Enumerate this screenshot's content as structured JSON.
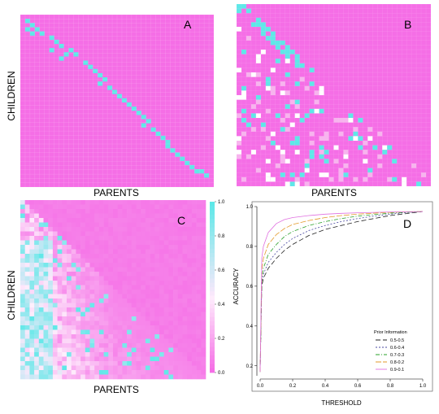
{
  "chart_data": [
    {
      "panel": "A",
      "type": "heatmap",
      "xlabel": "PARENTS",
      "ylabel": "CHILDREN",
      "grid_size": 40,
      "highlight_color": "#5ee8e8",
      "base_color": "#f56ee6",
      "highlight_cells": [
        [
          1,
          1
        ],
        [
          2,
          2
        ],
        [
          3,
          1
        ],
        [
          3,
          3
        ],
        [
          4,
          2
        ],
        [
          4,
          4
        ],
        [
          5,
          6
        ],
        [
          6,
          7
        ],
        [
          7,
          8
        ],
        [
          8,
          6
        ],
        [
          8,
          10
        ],
        [
          9,
          9
        ],
        [
          9,
          11
        ],
        [
          10,
          8
        ],
        [
          11,
          13
        ],
        [
          12,
          14
        ],
        [
          13,
          15
        ],
        [
          14,
          16
        ],
        [
          15,
          17
        ],
        [
          16,
          16
        ],
        [
          17,
          18
        ],
        [
          18,
          19
        ],
        [
          19,
          20
        ],
        [
          20,
          21
        ],
        [
          21,
          22
        ],
        [
          22,
          23
        ],
        [
          23,
          24
        ],
        [
          24,
          25
        ],
        [
          25,
          26
        ],
        [
          26,
          25
        ],
        [
          27,
          27
        ],
        [
          28,
          28
        ],
        [
          29,
          29
        ],
        [
          30,
          30
        ],
        [
          31,
          30
        ],
        [
          32,
          31
        ],
        [
          33,
          32
        ],
        [
          34,
          33
        ],
        [
          35,
          34
        ],
        [
          36,
          35
        ],
        [
          37,
          36
        ],
        [
          37,
          37
        ],
        [
          38,
          38
        ]
      ]
    },
    {
      "panel": "B",
      "type": "heatmap",
      "xlabel": "PARENTS",
      "ylabel": "",
      "grid_size": 40,
      "highlight_color": "#5ee8e8",
      "base_color": "#f56ee6"
    },
    {
      "panel": "C",
      "type": "heatmap",
      "xlabel": "PARENTS",
      "ylabel": "CHILDREN",
      "grid_size": 40,
      "colorbar": {
        "ticks": [
          "1.0",
          "0.8",
          "0.6",
          "0.4",
          "0.2",
          "0.0"
        ],
        "tick_values": [
          1.0,
          0.8,
          0.6,
          0.4,
          0.2,
          0.0
        ],
        "range": [
          0,
          1
        ],
        "color_high": "#5ee8e8",
        "color_low": "#f56ee6"
      }
    },
    {
      "panel": "D",
      "type": "line",
      "xlabel": "THRESHOLD",
      "ylabel": "ACCURACY",
      "xlim": [
        0,
        1
      ],
      "ylim": [
        0.15,
        1.0
      ],
      "xticks": [
        "0.0",
        "0.2",
        "0.4",
        "0.6",
        "0.8",
        "1.0"
      ],
      "xtick_values": [
        0,
        0.2,
        0.4,
        0.6,
        0.8,
        1.0
      ],
      "yticks": [
        "0.2",
        "0.4",
        "0.6",
        "0.8",
        "1.0"
      ],
      "ytick_values": [
        0.2,
        0.4,
        0.6,
        0.8,
        1.0
      ],
      "legend_title": "Prior Information",
      "legend_position": "bottom-right",
      "x": [
        0,
        0.01,
        0.02,
        0.05,
        0.1,
        0.15,
        0.2,
        0.3,
        0.4,
        0.5,
        0.6,
        0.7,
        0.8,
        0.9,
        1.0
      ],
      "series": [
        {
          "name": "0.5-0.5",
          "color": "#222222",
          "dash": "6,3",
          "values": [
            0.17,
            0.6,
            0.64,
            0.69,
            0.74,
            0.78,
            0.81,
            0.855,
            0.885,
            0.905,
            0.925,
            0.94,
            0.955,
            0.965,
            0.975
          ]
        },
        {
          "name": "0.6-0.4",
          "color": "#4a4aa0",
          "dash": "2,2",
          "values": [
            0.17,
            0.62,
            0.66,
            0.72,
            0.77,
            0.81,
            0.84,
            0.88,
            0.905,
            0.925,
            0.94,
            0.952,
            0.962,
            0.97,
            0.975
          ]
        },
        {
          "name": "0.7-0.3",
          "color": "#2aa02a",
          "dash": "5,2,1,2",
          "values": [
            0.17,
            0.64,
            0.69,
            0.76,
            0.81,
            0.85,
            0.875,
            0.905,
            0.925,
            0.94,
            0.952,
            0.96,
            0.967,
            0.972,
            0.975
          ]
        },
        {
          "name": "0.8-0.2",
          "color": "#e39a2a",
          "dash": "7,2",
          "values": [
            0.17,
            0.68,
            0.74,
            0.81,
            0.86,
            0.89,
            0.91,
            0.93,
            0.945,
            0.955,
            0.962,
            0.967,
            0.971,
            0.974,
            0.975
          ]
        },
        {
          "name": "0.9-0.1",
          "color": "#e070e0",
          "dash": "",
          "values": [
            0.17,
            0.74,
            0.8,
            0.87,
            0.915,
            0.935,
            0.945,
            0.955,
            0.962,
            0.966,
            0.969,
            0.971,
            0.973,
            0.974,
            0.975
          ]
        }
      ]
    }
  ]
}
